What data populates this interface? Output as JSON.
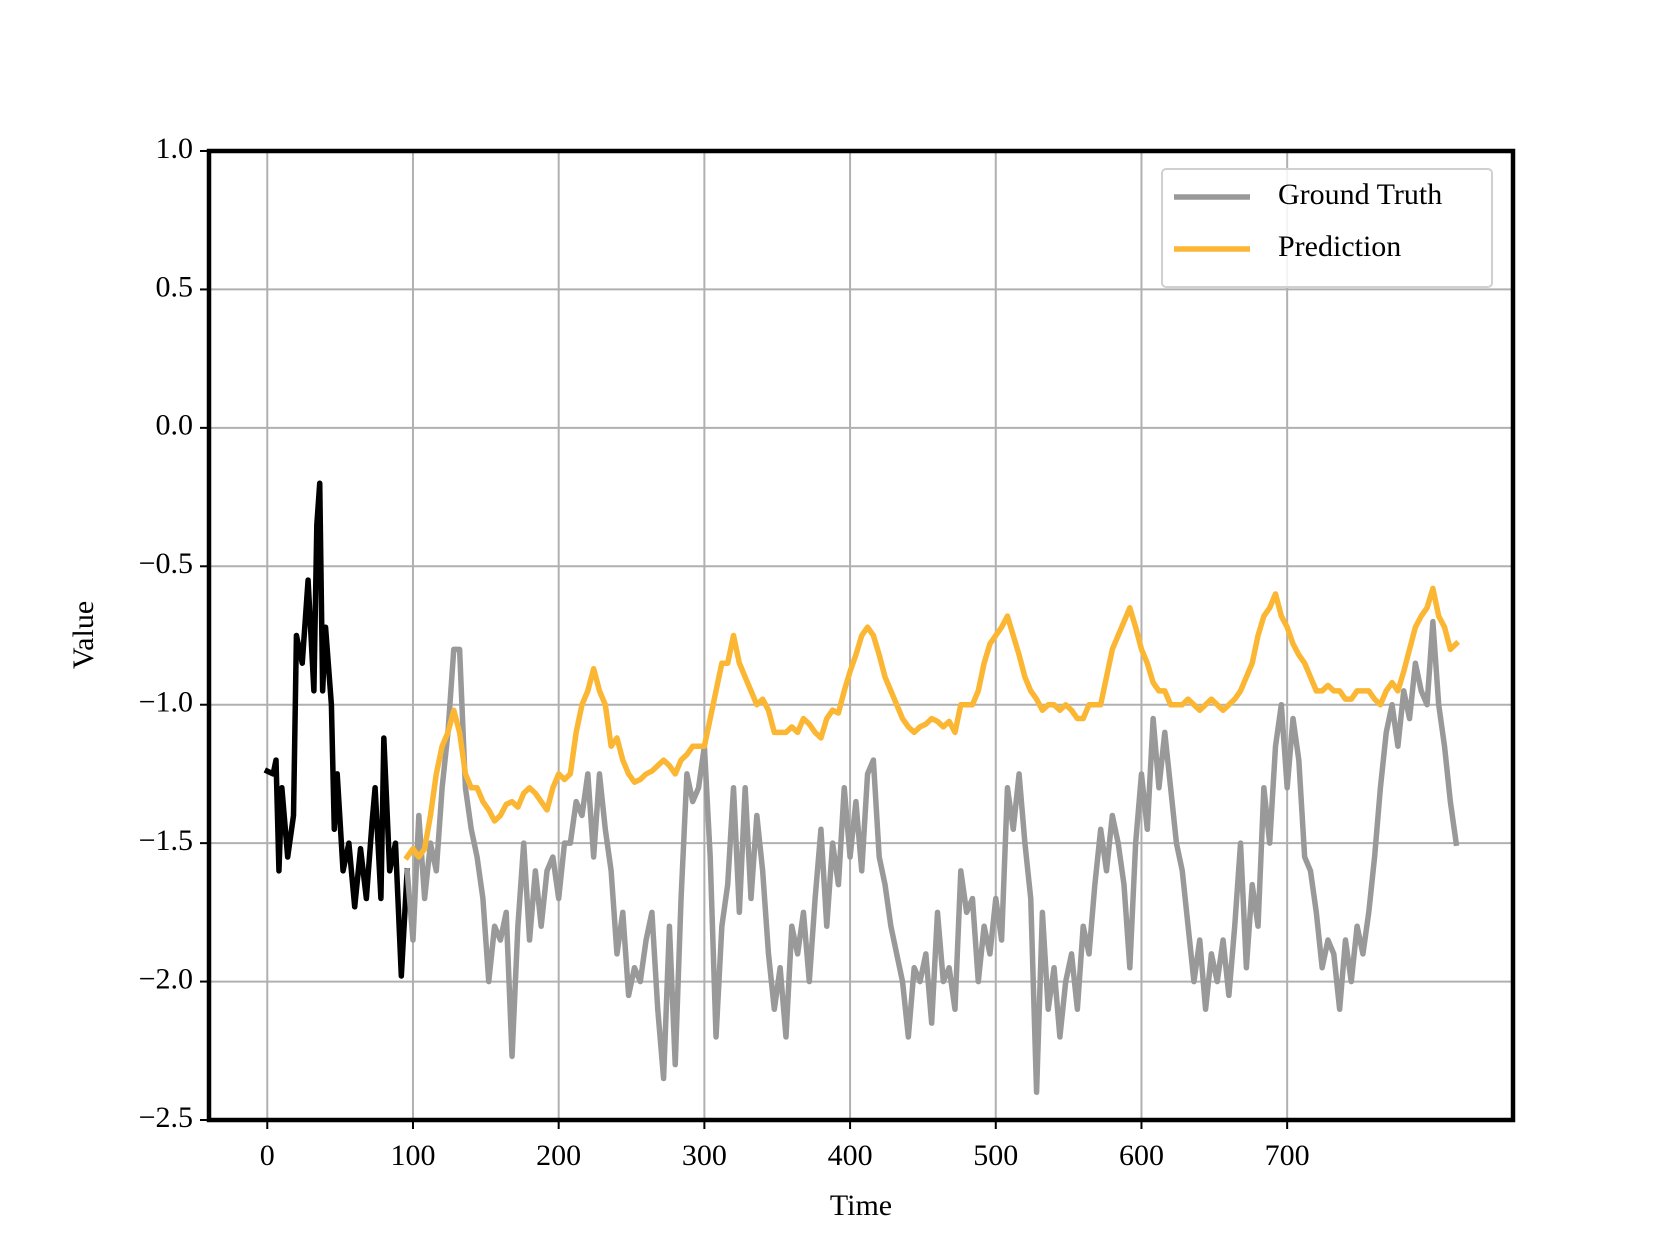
{
  "chart_data": {
    "type": "line",
    "xlabel": "Time",
    "ylabel": "Value",
    "xlim": [
      -40,
      855
    ],
    "ylim": [
      -2.5,
      1.0
    ],
    "xticks": [
      0,
      100,
      200,
      300,
      400,
      500,
      600,
      700
    ],
    "yticks": [
      {
        "value": 1.0,
        "label": "1.0"
      },
      {
        "value": 0.5,
        "label": "0.5"
      },
      {
        "value": 0.0,
        "label": "0.0"
      },
      {
        "value": -0.5,
        "label": "−0.5"
      },
      {
        "value": -1.0,
        "label": "−1.0"
      },
      {
        "value": -1.5,
        "label": "−1.5"
      },
      {
        "value": -2.0,
        "label": "−2.0"
      },
      {
        "value": -2.5,
        "label": "−2.5"
      }
    ],
    "grid": true,
    "legend": "upper right",
    "series": [
      {
        "color": "#000000",
        "x": [
          0,
          4,
          6,
          8,
          10,
          14,
          18,
          20,
          24,
          28,
          32,
          34,
          36,
          38,
          40,
          44,
          46,
          48,
          52,
          56,
          60,
          64,
          68,
          72,
          74,
          78,
          80,
          84,
          88,
          92,
          96
        ],
        "values": [
          -1.24,
          -1.25,
          -1.2,
          -1.6,
          -1.3,
          -1.55,
          -1.4,
          -0.75,
          -0.85,
          -0.55,
          -0.95,
          -0.35,
          -0.2,
          -0.95,
          -0.72,
          -1.0,
          -1.45,
          -1.25,
          -1.6,
          -1.5,
          -1.73,
          -1.52,
          -1.7,
          -1.42,
          -1.3,
          -1.7,
          -1.12,
          -1.6,
          -1.5,
          -1.98,
          -1.6
        ]
      },
      {
        "name": "Ground Truth",
        "color": "#999999",
        "x": [
          96,
          100,
          104,
          108,
          112,
          116,
          120,
          124,
          128,
          132,
          136,
          140,
          144,
          148,
          152,
          156,
          160,
          164,
          168,
          172,
          176,
          180,
          184,
          188,
          192,
          196,
          200,
          204,
          208,
          212,
          216,
          220,
          224,
          228,
          232,
          236,
          240,
          244,
          248,
          252,
          256,
          260,
          264,
          268,
          272,
          276,
          280,
          284,
          288,
          292,
          296,
          300,
          304,
          308,
          312,
          316,
          320,
          324,
          328,
          332,
          336,
          340,
          344,
          348,
          352,
          356,
          360,
          364,
          368,
          372,
          376,
          380,
          384,
          388,
          392,
          396,
          400,
          404,
          408,
          412,
          416,
          420,
          424,
          428,
          432,
          436,
          440,
          444,
          448,
          452,
          456,
          460,
          464,
          468,
          472,
          476,
          480,
          484,
          488,
          492,
          496,
          500,
          504,
          508,
          512,
          516,
          520,
          524,
          528,
          532,
          536,
          540,
          544,
          548,
          552,
          556,
          560,
          564,
          568,
          572,
          576,
          580,
          584,
          588,
          592,
          596,
          600,
          604,
          608,
          612,
          616,
          620,
          624,
          628,
          632,
          636,
          640,
          644,
          648,
          652,
          656,
          660,
          664,
          668,
          672,
          676,
          680,
          684,
          688,
          692,
          696,
          700,
          704,
          708,
          712,
          716,
          720,
          724,
          728,
          732,
          736,
          740,
          744,
          748,
          752,
          756,
          760,
          764,
          768,
          772,
          776,
          780,
          784,
          788,
          792,
          796,
          800,
          804,
          808,
          812,
          816
        ],
        "values": [
          -1.6,
          -1.85,
          -1.4,
          -1.7,
          -1.5,
          -1.6,
          -1.3,
          -1.1,
          -0.8,
          -0.8,
          -1.3,
          -1.45,
          -1.55,
          -1.7,
          -2.0,
          -1.8,
          -1.85,
          -1.75,
          -2.27,
          -1.8,
          -1.5,
          -1.85,
          -1.6,
          -1.8,
          -1.6,
          -1.55,
          -1.7,
          -1.5,
          -1.5,
          -1.35,
          -1.4,
          -1.25,
          -1.55,
          -1.25,
          -1.45,
          -1.6,
          -1.9,
          -1.75,
          -2.05,
          -1.95,
          -2.0,
          -1.85,
          -1.75,
          -2.1,
          -2.35,
          -1.8,
          -2.3,
          -1.7,
          -1.25,
          -1.35,
          -1.3,
          -1.15,
          -1.55,
          -2.2,
          -1.8,
          -1.65,
          -1.3,
          -1.75,
          -1.3,
          -1.7,
          -1.4,
          -1.6,
          -1.9,
          -2.1,
          -1.95,
          -2.2,
          -1.8,
          -1.9,
          -1.75,
          -2.0,
          -1.7,
          -1.45,
          -1.8,
          -1.5,
          -1.65,
          -1.3,
          -1.55,
          -1.35,
          -1.6,
          -1.25,
          -1.2,
          -1.55,
          -1.65,
          -1.8,
          -1.9,
          -2.0,
          -2.2,
          -1.95,
          -2.0,
          -1.9,
          -2.15,
          -1.75,
          -2.0,
          -1.95,
          -2.1,
          -1.6,
          -1.75,
          -1.7,
          -2.0,
          -1.8,
          -1.9,
          -1.7,
          -1.85,
          -1.3,
          -1.45,
          -1.25,
          -1.5,
          -1.7,
          -2.4,
          -1.75,
          -2.1,
          -1.95,
          -2.2,
          -2.0,
          -1.9,
          -2.1,
          -1.8,
          -1.9,
          -1.65,
          -1.45,
          -1.6,
          -1.4,
          -1.5,
          -1.65,
          -1.95,
          -1.5,
          -1.25,
          -1.45,
          -1.05,
          -1.3,
          -1.1,
          -1.3,
          -1.5,
          -1.6,
          -1.8,
          -2.0,
          -1.85,
          -2.1,
          -1.9,
          -2.0,
          -1.85,
          -2.05,
          -1.8,
          -1.5,
          -1.95,
          -1.65,
          -1.8,
          -1.3,
          -1.5,
          -1.15,
          -1.0,
          -1.3,
          -1.05,
          -1.2,
          -1.55,
          -1.6,
          -1.75,
          -1.95,
          -1.85,
          -1.9,
          -2.1,
          -1.85,
          -2.0,
          -1.8,
          -1.9,
          -1.75,
          -1.55,
          -1.3,
          -1.1,
          -1.0,
          -1.15,
          -0.95,
          -1.05,
          -0.85,
          -0.95,
          -1.0,
          -0.7,
          -1.0,
          -1.15,
          -1.35,
          -1.5
        ]
      },
      {
        "name": "Prediction",
        "color": "#fbb633",
        "x": [
          96,
          100,
          104,
          108,
          112,
          116,
          120,
          124,
          128,
          132,
          136,
          140,
          144,
          148,
          152,
          156,
          160,
          164,
          168,
          172,
          176,
          180,
          184,
          188,
          192,
          196,
          200,
          204,
          208,
          212,
          216,
          220,
          224,
          228,
          232,
          236,
          240,
          244,
          248,
          252,
          256,
          260,
          264,
          268,
          272,
          276,
          280,
          284,
          288,
          292,
          296,
          300,
          304,
          308,
          312,
          316,
          320,
          324,
          328,
          332,
          336,
          340,
          344,
          348,
          352,
          356,
          360,
          364,
          368,
          372,
          376,
          380,
          384,
          388,
          392,
          396,
          400,
          404,
          408,
          412,
          416,
          420,
          424,
          428,
          432,
          436,
          440,
          444,
          448,
          452,
          456,
          460,
          464,
          468,
          472,
          476,
          480,
          484,
          488,
          492,
          496,
          500,
          504,
          508,
          512,
          516,
          520,
          524,
          528,
          532,
          536,
          540,
          544,
          548,
          552,
          556,
          560,
          564,
          568,
          572,
          576,
          580,
          584,
          588,
          592,
          596,
          600,
          604,
          608,
          612,
          616,
          620,
          624,
          628,
          632,
          636,
          640,
          644,
          648,
          652,
          656,
          660,
          664,
          668,
          672,
          676,
          680,
          684,
          688,
          692,
          696,
          700,
          704,
          708,
          712,
          716,
          720,
          724,
          728,
          732,
          736,
          740,
          744,
          748,
          752,
          756,
          760,
          764,
          768,
          772,
          776,
          780,
          784,
          788,
          792,
          796,
          800,
          804,
          808,
          812,
          816
        ],
        "values": [
          -1.55,
          -1.52,
          -1.55,
          -1.52,
          -1.4,
          -1.25,
          -1.15,
          -1.1,
          -1.02,
          -1.1,
          -1.25,
          -1.3,
          -1.3,
          -1.35,
          -1.38,
          -1.42,
          -1.4,
          -1.36,
          -1.35,
          -1.37,
          -1.32,
          -1.3,
          -1.32,
          -1.35,
          -1.38,
          -1.3,
          -1.25,
          -1.27,
          -1.25,
          -1.1,
          -1.0,
          -0.95,
          -0.87,
          -0.95,
          -1.0,
          -1.15,
          -1.12,
          -1.2,
          -1.25,
          -1.28,
          -1.27,
          -1.25,
          -1.24,
          -1.22,
          -1.2,
          -1.22,
          -1.25,
          -1.2,
          -1.18,
          -1.15,
          -1.15,
          -1.15,
          -1.05,
          -0.95,
          -0.85,
          -0.85,
          -0.75,
          -0.85,
          -0.9,
          -0.95,
          -1.0,
          -0.98,
          -1.02,
          -1.1,
          -1.1,
          -1.1,
          -1.08,
          -1.1,
          -1.05,
          -1.07,
          -1.1,
          -1.12,
          -1.05,
          -1.02,
          -1.03,
          -0.95,
          -0.88,
          -0.82,
          -0.75,
          -0.72,
          -0.75,
          -0.82,
          -0.9,
          -0.95,
          -1.0,
          -1.05,
          -1.08,
          -1.1,
          -1.08,
          -1.07,
          -1.05,
          -1.06,
          -1.08,
          -1.06,
          -1.1,
          -1.0,
          -1.0,
          -1.0,
          -0.95,
          -0.85,
          -0.78,
          -0.75,
          -0.72,
          -0.68,
          -0.75,
          -0.82,
          -0.9,
          -0.95,
          -0.98,
          -1.02,
          -1.0,
          -1.0,
          -1.02,
          -1.0,
          -1.02,
          -1.05,
          -1.05,
          -1.0,
          -1.0,
          -1.0,
          -0.9,
          -0.8,
          -0.75,
          -0.7,
          -0.65,
          -0.72,
          -0.8,
          -0.85,
          -0.92,
          -0.95,
          -0.95,
          -1.0,
          -1.0,
          -1.0,
          -0.98,
          -1.0,
          -1.02,
          -1.0,
          -0.98,
          -1.0,
          -1.02,
          -1.0,
          -0.98,
          -0.95,
          -0.9,
          -0.85,
          -0.75,
          -0.68,
          -0.65,
          -0.6,
          -0.68,
          -0.72,
          -0.78,
          -0.82,
          -0.85,
          -0.9,
          -0.95,
          -0.95,
          -0.93,
          -0.95,
          -0.95,
          -0.98,
          -0.98,
          -0.95,
          -0.95,
          -0.95,
          -0.98,
          -1.0,
          -0.95,
          -0.92,
          -0.95,
          -0.88,
          -0.8,
          -0.72,
          -0.68,
          -0.65,
          -0.58,
          -0.68,
          -0.72,
          -0.8,
          -0.78
        ]
      }
    ]
  }
}
